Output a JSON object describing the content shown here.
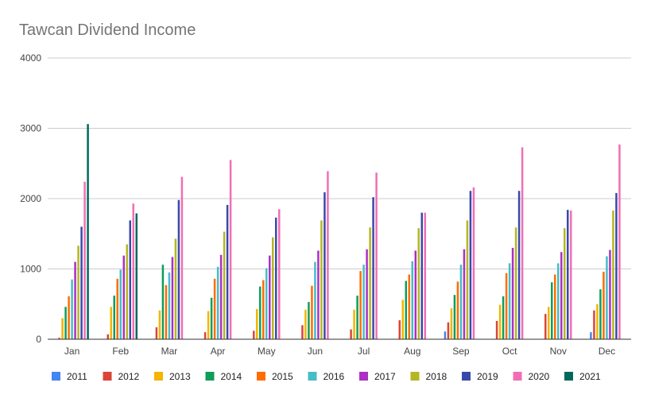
{
  "chart_data": {
    "type": "bar",
    "title": "Tawcan Dividend Income",
    "xlabel": "",
    "ylabel": "",
    "ylim": [
      0,
      4000
    ],
    "yticks": [
      "0",
      "1000",
      "2000",
      "3000",
      "4000"
    ],
    "grid": true,
    "legend": "bottom",
    "categories": [
      "Jan",
      "Feb",
      "Mar",
      "Apr",
      "May",
      "Jun",
      "Jul",
      "Aug",
      "Sep",
      "Oct",
      "Nov",
      "Dec"
    ],
    "series": [
      {
        "name": "2011",
        "color": "#4285f4",
        "values": [
          null,
          null,
          null,
          null,
          null,
          null,
          null,
          null,
          110,
          null,
          null,
          100
        ]
      },
      {
        "name": "2012",
        "color": "#db4437",
        "values": [
          20,
          70,
          170,
          100,
          120,
          200,
          140,
          270,
          240,
          260,
          360,
          410
        ]
      },
      {
        "name": "2013",
        "color": "#f4b400",
        "values": [
          300,
          460,
          410,
          400,
          430,
          420,
          420,
          560,
          440,
          490,
          460,
          500
        ]
      },
      {
        "name": "2014",
        "color": "#0f9d58",
        "values": [
          460,
          620,
          1060,
          590,
          750,
          530,
          620,
          830,
          630,
          610,
          810,
          710
        ]
      },
      {
        "name": "2015",
        "color": "#ff6d00",
        "values": [
          610,
          860,
          770,
          860,
          840,
          760,
          970,
          920,
          820,
          940,
          920,
          960
        ]
      },
      {
        "name": "2016",
        "color": "#46bdc6",
        "values": [
          850,
          990,
          950,
          1030,
          1010,
          1100,
          1060,
          1110,
          1060,
          1080,
          1080,
          1180
        ]
      },
      {
        "name": "2017",
        "color": "#ab30c4",
        "values": [
          1100,
          1190,
          1170,
          1200,
          1190,
          1260,
          1280,
          1260,
          1280,
          1300,
          1240,
          1270
        ]
      },
      {
        "name": "2018",
        "color": "#b5b623",
        "values": [
          1330,
          1350,
          1430,
          1530,
          1450,
          1690,
          1590,
          1580,
          1690,
          1590,
          1580,
          1830
        ]
      },
      {
        "name": "2019",
        "color": "#3949ab",
        "values": [
          1600,
          1690,
          1980,
          1910,
          1730,
          2090,
          2020,
          1800,
          2110,
          2110,
          1840,
          2080
        ]
      },
      {
        "name": "2020",
        "color": "#f06fb4",
        "values": [
          2240,
          1930,
          2310,
          2550,
          1850,
          2390,
          2370,
          1800,
          2160,
          2730,
          1830,
          2770
        ]
      },
      {
        "name": "2021",
        "color": "#00695c",
        "values": [
          3060,
          1790,
          null,
          null,
          null,
          null,
          null,
          null,
          null,
          null,
          null,
          null
        ]
      }
    ]
  }
}
